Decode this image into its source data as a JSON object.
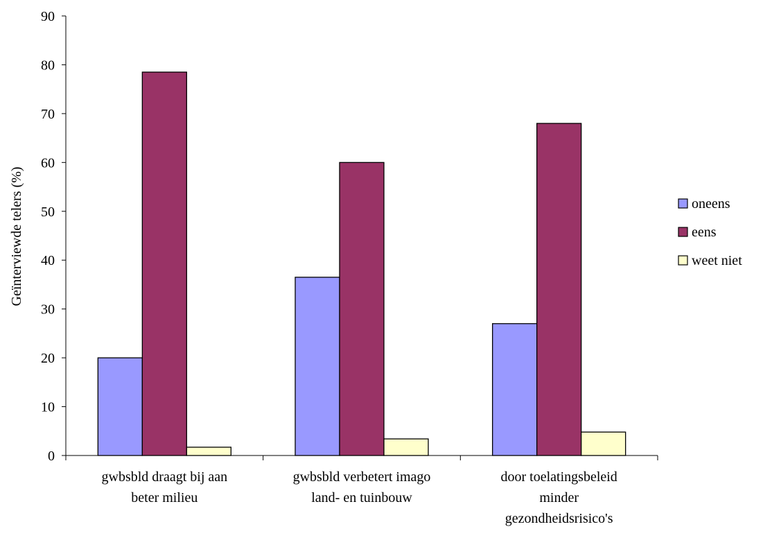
{
  "chart_data": {
    "type": "bar",
    "ylabel": "Geïnterviewde telers (%)",
    "ylim": [
      0,
      90
    ],
    "ytick_step": 10,
    "categories": [
      [
        "gwbsbld draagt bij aan",
        "beter milieu"
      ],
      [
        "gwbsbld verbetert imago",
        "land- en tuinbouw"
      ],
      [
        "door toelatingsbeleid",
        "minder",
        "gezondheidsrisico's"
      ]
    ],
    "series": [
      {
        "name": "oneens",
        "color": "#9999ff",
        "values": [
          20,
          36.5,
          27
        ]
      },
      {
        "name": "eens",
        "color": "#993366",
        "values": [
          78.5,
          60,
          68
        ]
      },
      {
        "name": "weet niet",
        "color": "#ffffcc",
        "values": [
          1.7,
          3.4,
          4.8
        ]
      }
    ],
    "legend_position": "right",
    "grid": false
  }
}
